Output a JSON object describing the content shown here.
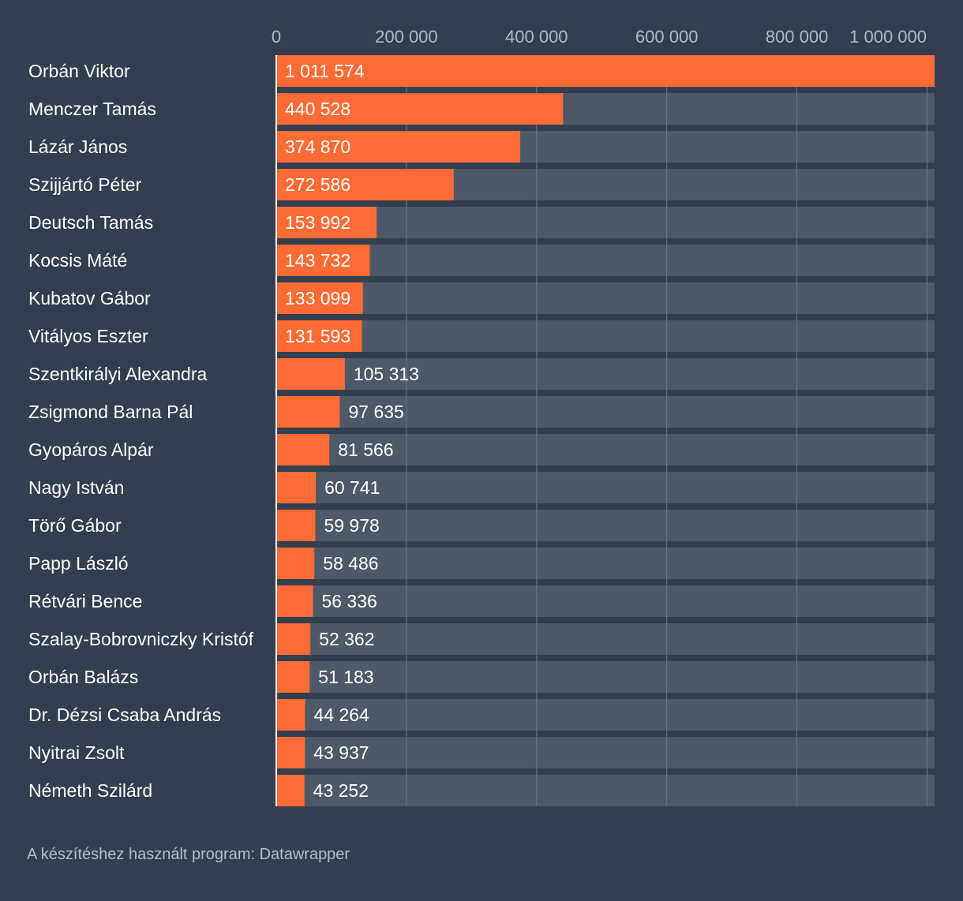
{
  "chart_data": {
    "type": "bar",
    "orientation": "horizontal",
    "categories": [
      "Orbán Viktor",
      "Menczer Tamás",
      "Lázár János",
      "Szijjártó Péter",
      "Deutsch Tamás",
      "Kocsis Máté",
      "Kubatov Gábor",
      "Vitályos Eszter",
      "Szentkirályi Alexandra",
      "Zsigmond Barna Pál",
      "Gyopáros Alpár",
      "Nagy István",
      "Törő Gábor",
      "Papp László",
      "Rétvári Bence",
      "Szalay-Bobrovniczky Kristóf",
      "Orbán Balázs",
      "Dr. Dézsi Csaba András",
      "Nyitrai Zsolt",
      "Németh Szilárd"
    ],
    "values": [
      1011574,
      440528,
      374870,
      272586,
      153992,
      143732,
      133099,
      131593,
      105313,
      97635,
      81566,
      60741,
      59978,
      58486,
      56336,
      52362,
      51183,
      44264,
      43937,
      43252
    ],
    "value_labels": [
      "1 011 574",
      "440 528",
      "374 870",
      "272 586",
      "153 992",
      "143 732",
      "133 099",
      "131 593",
      "105 313",
      "97 635",
      "81 566",
      "60 741",
      "59 978",
      "58 486",
      "56 336",
      "52 362",
      "51 183",
      "44 264",
      "43 937",
      "43 252"
    ],
    "xlim": [
      0,
      1011574
    ],
    "xticks": [
      0,
      200000,
      400000,
      600000,
      800000,
      1000000
    ],
    "xtick_labels": [
      "0",
      "200 000",
      "400 000",
      "600 000",
      "800 000",
      "1 000 000"
    ],
    "grid": true,
    "colors": {
      "background": "#333f4f",
      "bar": "#ff6b35",
      "track": "#4e5968",
      "gridline": "#6b7584",
      "axis_line": "#ffffff",
      "tick_text": "#b3b8c0",
      "label_text": "#ffffff"
    }
  },
  "footer": {
    "credit": "A készítéshez használt program: Datawrapper"
  }
}
